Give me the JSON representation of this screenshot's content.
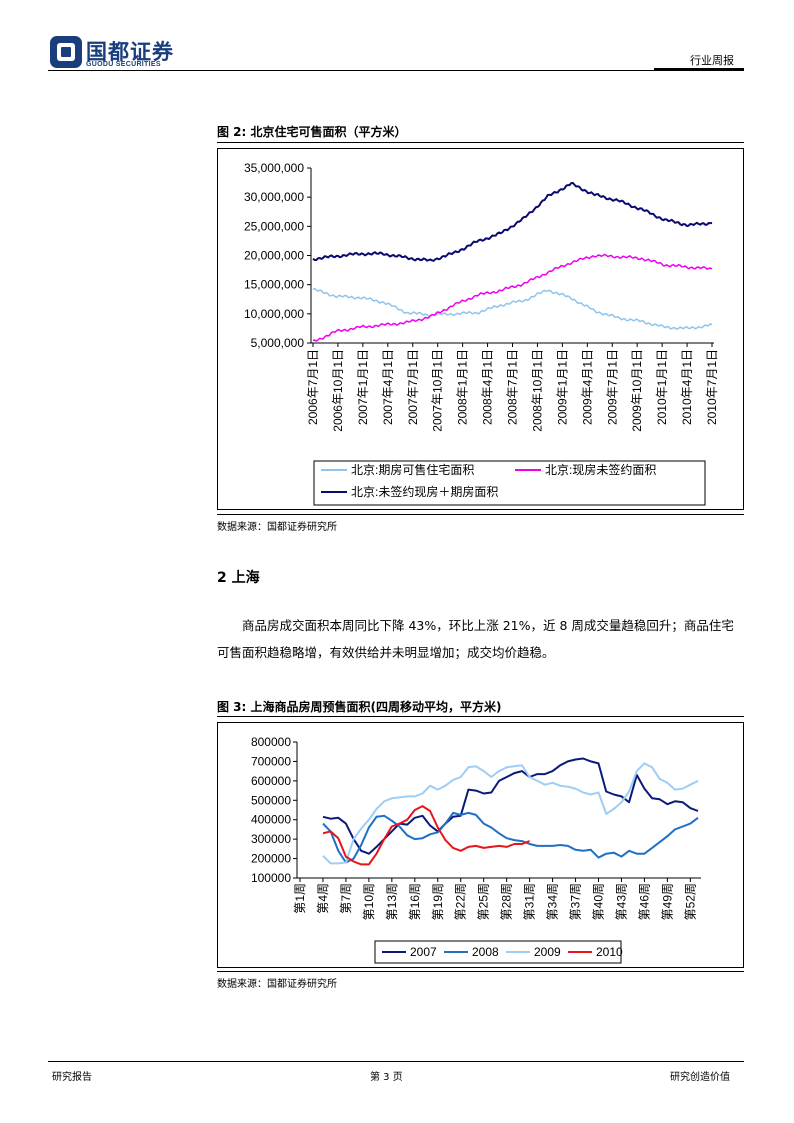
{
  "header": {
    "logo_cn": "国都证券",
    "logo_en": "GUODU SECURITIES",
    "report_type": "行业周报"
  },
  "figure2": {
    "title": "图 2:  北京住宅可售面积（平方米）",
    "source": "数据来源：国都证券研究所",
    "chart_data": {
      "type": "line",
      "y_ticks": [
        "35,000,000",
        "30,000,000",
        "25,000,000",
        "20,000,000",
        "15,000,000",
        "10,000,000",
        "5,000,000"
      ],
      "ylim": [
        5000000,
        35000000
      ],
      "x_ticks": [
        "2006年7月1日",
        "2006年10月1日",
        "2007年1月1日",
        "2007年4月1日",
        "2007年7月1日",
        "2007年10月1日",
        "2008年1月1日",
        "2008年4月1日",
        "2008年7月1日",
        "2008年10月1日",
        "2009年1月1日",
        "2009年4月1日",
        "2009年7月1日",
        "2009年10月1日",
        "2010年1月1日",
        "2010年4月1日",
        "2010年7月1日"
      ],
      "series": [
        {
          "name": "北京:期房可售住宅面积",
          "color": "#8ec4ee",
          "values": [
            14200000,
            13000000,
            12800000,
            12000000,
            10200000,
            9800000,
            10000000,
            10200000,
            11500000,
            12300000,
            14100000,
            12700000,
            10500000,
            9300000,
            8700000,
            7700000,
            7500000,
            8100000
          ]
        },
        {
          "name": "北京:现房未签约面积",
          "color": "#ee00ee",
          "values": [
            5200000,
            7000000,
            7700000,
            8100000,
            8500000,
            9500000,
            11500000,
            13200000,
            14000000,
            15200000,
            17100000,
            18800000,
            20000000,
            19800000,
            19500000,
            18400000,
            18000000,
            17700000
          ]
        },
        {
          "name": "北京:未签约现房＋期房面积",
          "color": "#0a0a6e",
          "values": [
            19400000,
            19900000,
            20300000,
            20300000,
            19600000,
            19100000,
            20400000,
            22400000,
            23800000,
            26400000,
            30100000,
            32300000,
            30400000,
            29400000,
            27900000,
            26100000,
            25200000,
            25600000
          ]
        }
      ],
      "legend": [
        "北京:期房可售住宅面积",
        "北京:现房未签约面积",
        "北京:未签约现房＋期房面积"
      ]
    }
  },
  "section2": {
    "heading": "2 上海",
    "paragraph": "商品房成交面积本周同比下降 43%，环比上涨 21%，近 8 周成交量趋稳回升；商品住宅可售面积趋稳略增，有效供给并未明显增加；成交均价趋稳。"
  },
  "figure3": {
    "title": "图 3:  上海商品房周预售面积(四周移动平均，平方米)",
    "source": "数据来源：国都证券研究所",
    "chart_data": {
      "type": "line",
      "y_ticks": [
        "800000",
        "700000",
        "600000",
        "500000",
        "400000",
        "300000",
        "200000",
        "100000"
      ],
      "ylim": [
        100000,
        800000
      ],
      "x_ticks": [
        "第1周",
        "第4周",
        "第7周",
        "第10周",
        "第13周",
        "第16周",
        "第19周",
        "第22周",
        "第25周",
        "第28周",
        "第31周",
        "第34周",
        "第37周",
        "第40周",
        "第43周",
        "第46周",
        "第49周",
        "第52周"
      ],
      "series": [
        {
          "name": "2007",
          "color": "#0a1a7a",
          "start_week": 4,
          "values": [
            415000,
            405000,
            410000,
            380000,
            300000,
            240000,
            225000,
            260000,
            300000,
            340000,
            380000,
            375000,
            410000,
            420000,
            370000,
            340000,
            380000,
            415000,
            420000,
            555000,
            550000,
            535000,
            540000,
            600000,
            620000,
            640000,
            650000,
            620000,
            635000,
            635000,
            650000,
            680000,
            700000,
            710000,
            715000,
            700000,
            690000,
            545000,
            530000,
            520000,
            490000,
            630000,
            560000,
            510000,
            505000,
            480000,
            495000,
            490000,
            460000,
            445000
          ]
        },
        {
          "name": "2008",
          "color": "#1f6fc4",
          "start_week": 4,
          "values": [
            380000,
            340000,
            240000,
            180000,
            200000,
            270000,
            360000,
            415000,
            420000,
            395000,
            365000,
            320000,
            300000,
            305000,
            325000,
            335000,
            380000,
            435000,
            425000,
            435000,
            425000,
            380000,
            360000,
            330000,
            305000,
            295000,
            290000,
            275000,
            265000,
            265000,
            265000,
            270000,
            265000,
            245000,
            240000,
            245000,
            205000,
            225000,
            230000,
            210000,
            240000,
            225000,
            225000,
            255000,
            285000,
            315000,
            350000,
            365000,
            380000,
            410000
          ]
        },
        {
          "name": "2009",
          "color": "#9fcef4",
          "start_week": 4,
          "values": [
            215000,
            175000,
            175000,
            180000,
            300000,
            355000,
            400000,
            455000,
            495000,
            510000,
            515000,
            520000,
            520000,
            535000,
            575000,
            555000,
            575000,
            605000,
            620000,
            670000,
            675000,
            650000,
            620000,
            650000,
            670000,
            675000,
            680000,
            620000,
            600000,
            580000,
            590000,
            575000,
            570000,
            560000,
            540000,
            530000,
            540000,
            430000,
            455000,
            490000,
            545000,
            650000,
            690000,
            670000,
            610000,
            590000,
            555000,
            560000,
            580000,
            600000
          ]
        },
        {
          "name": "2010",
          "color": "#e8141c",
          "start_week": 4,
          "values": [
            330000,
            340000,
            305000,
            210000,
            185000,
            170000,
            170000,
            225000,
            300000,
            365000,
            380000,
            400000,
            450000,
            470000,
            445000,
            360000,
            295000,
            255000,
            240000,
            260000,
            265000,
            255000,
            260000,
            265000,
            260000,
            275000,
            275000,
            290000
          ]
        }
      ],
      "legend": [
        "2007",
        "2008",
        "2009",
        "2010"
      ]
    }
  },
  "footer": {
    "left": "研究报告",
    "center": "第 3 页",
    "right": "研究创造价值"
  }
}
